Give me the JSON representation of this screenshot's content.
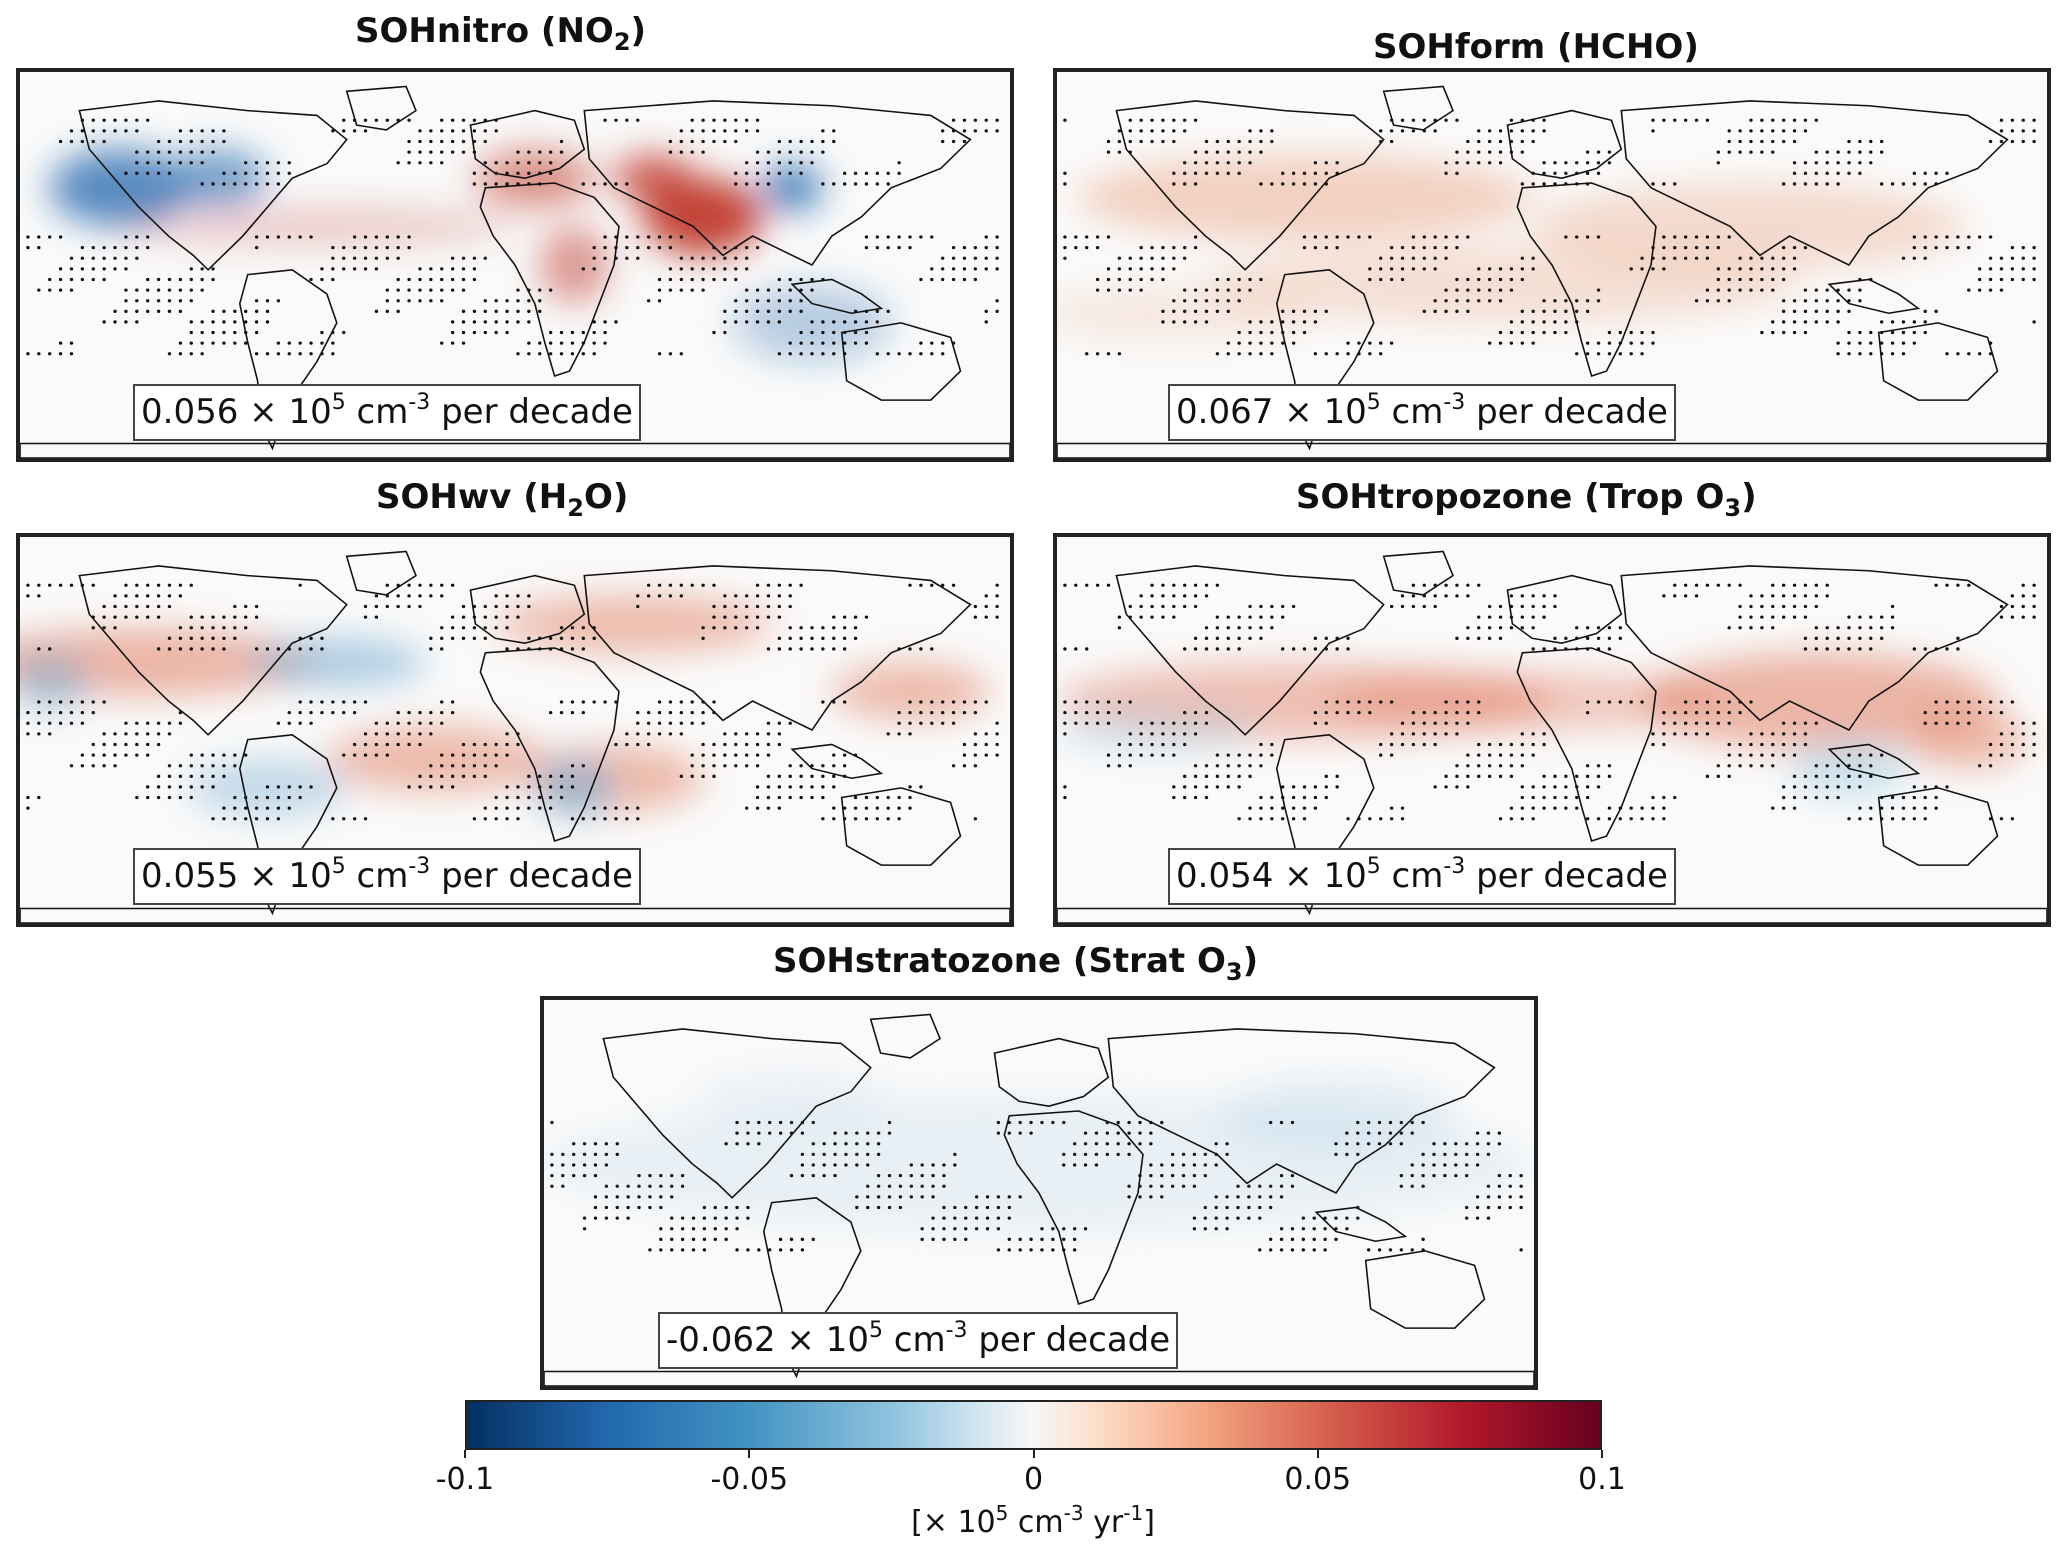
{
  "panels": [
    {
      "id": "nitro",
      "title_main": "SOHnitro (NO",
      "title_sub": "2",
      "title_end": ")",
      "annot_value": "0.056",
      "annot_mid": " × 10",
      "annot_exp": "5",
      "annot_unit": " cm",
      "annot_uexp": "-3",
      "annot_tail": " per decade",
      "warm": "#c0392b",
      "cool": "#2166ac"
    },
    {
      "id": "form",
      "title_main": "SOHform (HCHO)",
      "title_sub": "",
      "title_end": "",
      "annot_value": "0.067",
      "annot_mid": " × 10",
      "annot_exp": "5",
      "annot_unit": " cm",
      "annot_uexp": "-3",
      "annot_tail": " per decade",
      "warm": "#e8a07c",
      "cool": "#d1e5f0"
    },
    {
      "id": "wv",
      "title_main": "SOHwv (H",
      "title_sub": "2",
      "title_end": "O)",
      "annot_value": "0.055",
      "annot_mid": " × 10",
      "annot_exp": "5",
      "annot_unit": " cm",
      "annot_uexp": "-3",
      "annot_tail": " per decade",
      "warm": "#e07b5e",
      "cool": "#6fa8d0"
    },
    {
      "id": "tropozone",
      "title_main": "SOHtropozone (Trop O",
      "title_sub": "3",
      "title_end": ")",
      "annot_value": "0.054",
      "annot_mid": " × 10",
      "annot_exp": "5",
      "annot_unit": " cm",
      "annot_uexp": "-3",
      "annot_tail": " per decade",
      "warm": "#e07b5e",
      "cool": "#92c5de"
    },
    {
      "id": "stratozone",
      "title_main": "SOHstratozone (Strat O",
      "title_sub": "3",
      "title_end": ")",
      "annot_value": "-0.062",
      "annot_mid": " × 10",
      "annot_exp": "5",
      "annot_unit": " cm",
      "annot_uexp": "-3",
      "annot_tail": " per decade",
      "warm": "#fddbc7",
      "cool": "#c6dcec"
    }
  ],
  "colorbar": {
    "min": -0.1,
    "max": 0.1,
    "ticks": [
      "-0.1",
      "-0.05",
      "0",
      "0.05",
      "0.1"
    ],
    "tick_values": [
      -0.1,
      -0.05,
      0,
      0.05,
      0.1
    ],
    "label_open": "[× 10",
    "label_exp1": "5",
    "label_mid": " cm",
    "label_exp2": "-3",
    "label_mid2": " yr",
    "label_exp3": "-1",
    "label_close": "]",
    "colormap": "RdBu_r"
  }
}
